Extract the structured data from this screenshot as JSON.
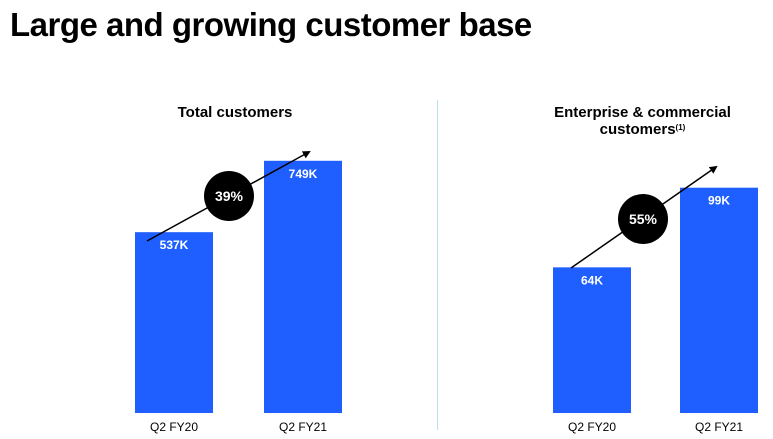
{
  "page": {
    "title": "Large and growing customer base"
  },
  "colors": {
    "bar": "#1f5fff",
    "bar_label": "#ffffff",
    "divider": "#b9dff0",
    "growth_badge": "#000000"
  },
  "chart_data": [
    {
      "type": "bar",
      "title": "Total customers",
      "title_superscript": "",
      "categories": [
        "Q2 FY20",
        "Q2 FY21"
      ],
      "values": [
        537,
        749
      ],
      "value_labels": [
        "537K",
        "749K"
      ],
      "unit": "K",
      "growth_label": "39%",
      "ylim": [
        0,
        980
      ],
      "grid": false,
      "legend": "none"
    },
    {
      "type": "bar",
      "title": "Enterprise & commercial customers",
      "title_superscript": "(1)",
      "categories": [
        "Q2 FY20",
        "Q2 FY21"
      ],
      "values": [
        64,
        99
      ],
      "value_labels": [
        "64K",
        "99K"
      ],
      "unit": "K",
      "growth_label": "55%",
      "ylim": [
        0,
        145
      ],
      "grid": false,
      "legend": "none"
    }
  ]
}
